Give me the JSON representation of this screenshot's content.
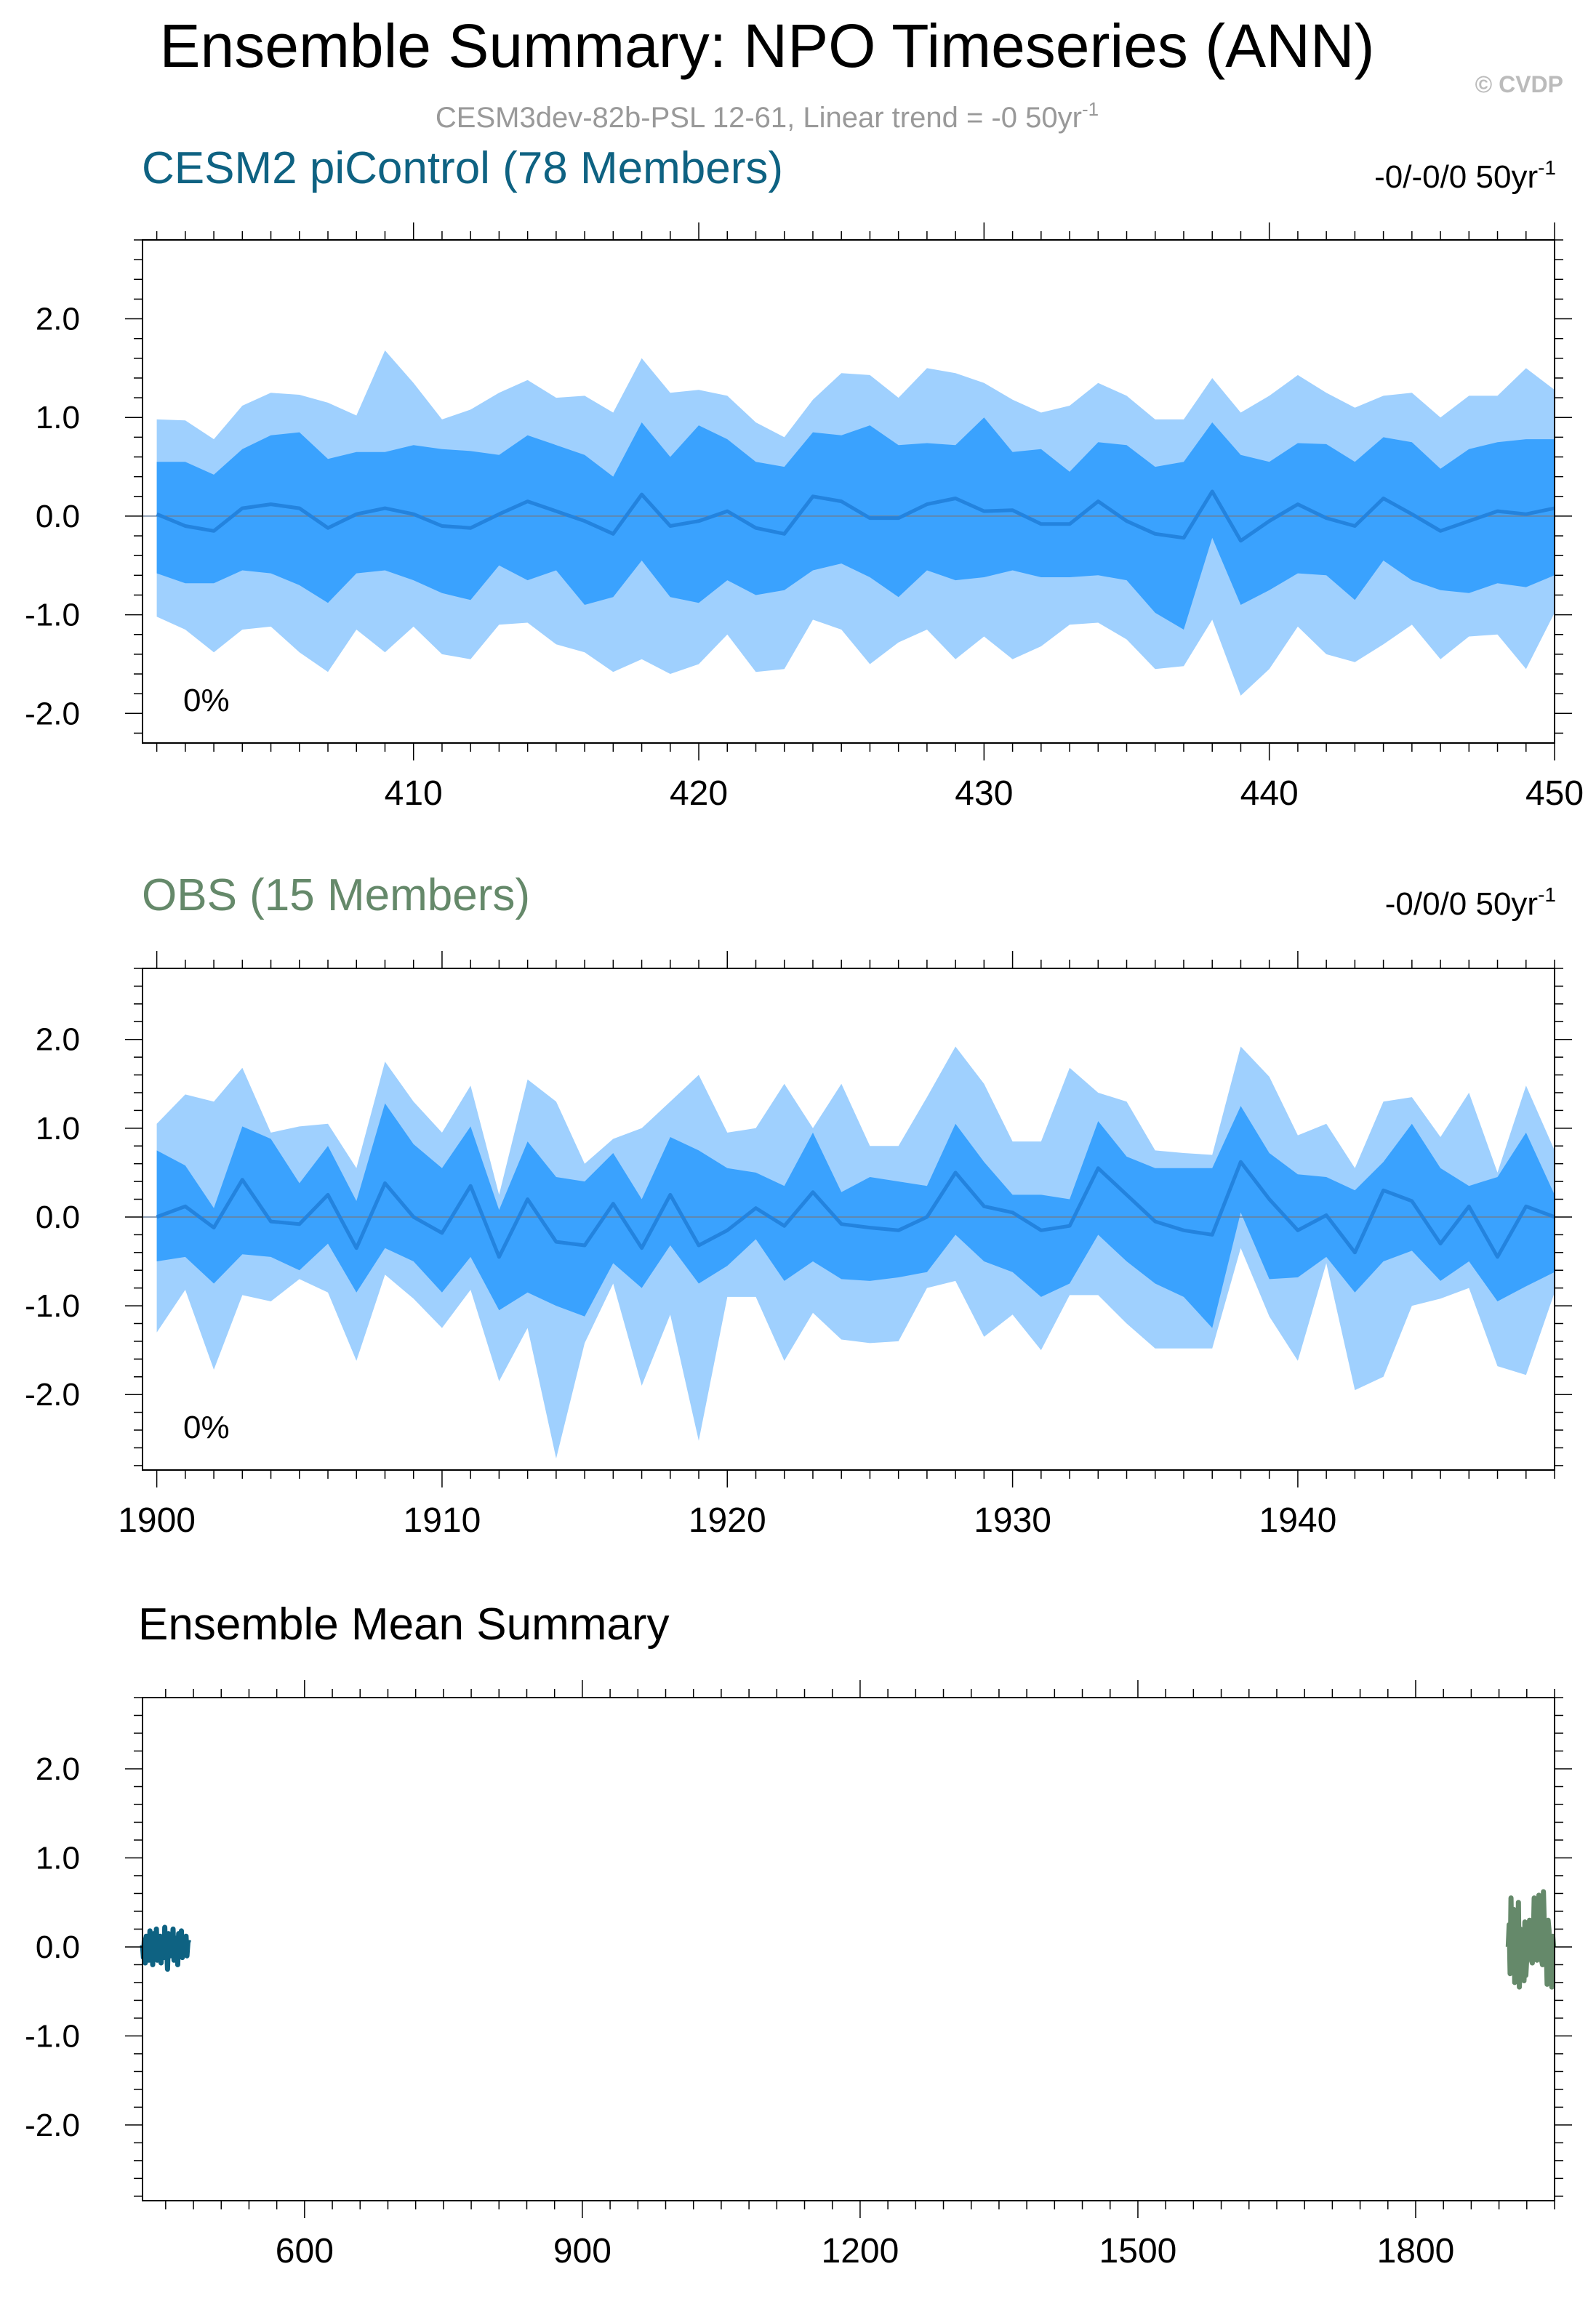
{
  "title": "Ensemble Summary: NPO Timeseries (ANN)",
  "copyright": "© CVDP",
  "subtitle_main": "CESM3dev-82b-PSL 12-61, Linear trend = -0 50yr",
  "subtitle_sup": "-1",
  "colors": {
    "outer_band": "#9fd0fe",
    "inner_band": "#3aa2fe",
    "mean_line": "#2383de",
    "cesm": "#0e6282",
    "obs": "#65896a",
    "subtitle": "#999999",
    "copyright": "#bbbbbb"
  },
  "chart_data": [
    {
      "type": "area",
      "title": "CESM2 piControl (78 Members)",
      "trend_main": "-0/-0/0 50yr",
      "trend_sup": "-1",
      "percent_label": "0%",
      "xlim": [
        400.5,
        450
      ],
      "ylim": [
        -2.3,
        2.8
      ],
      "xticks": [
        410,
        420,
        430,
        440,
        450
      ],
      "xtick_labels": [
        "410",
        "420",
        "430",
        "440",
        "450"
      ],
      "yticks": [
        -2,
        -1,
        0,
        1,
        2
      ],
      "ytick_labels": [
        "-2.0",
        "-1.0",
        "0.0",
        "1.0",
        "2.0"
      ],
      "x": [
        401,
        402,
        403,
        404,
        405,
        406,
        407,
        408,
        409,
        410,
        411,
        412,
        413,
        414,
        415,
        416,
        417,
        418,
        419,
        420,
        421,
        422,
        423,
        424,
        425,
        426,
        427,
        428,
        429,
        430,
        431,
        432,
        433,
        434,
        435,
        436,
        437,
        438,
        439,
        440,
        441,
        442,
        443,
        444,
        445,
        446,
        447,
        448,
        449,
        450
      ],
      "outer_upper": [
        0.98,
        0.97,
        0.78,
        1.12,
        1.25,
        1.23,
        1.15,
        1.02,
        1.68,
        1.35,
        0.98,
        1.08,
        1.25,
        1.38,
        1.2,
        1.22,
        1.05,
        1.6,
        1.25,
        1.28,
        1.22,
        0.95,
        0.8,
        1.18,
        1.45,
        1.43,
        1.2,
        1.5,
        1.45,
        1.35,
        1.18,
        1.05,
        1.12,
        1.35,
        1.22,
        0.98,
        0.98,
        1.4,
        1.05,
        1.22,
        1.43,
        1.25,
        1.1,
        1.22,
        1.25,
        1.0,
        1.22,
        1.22,
        1.5,
        1.28
      ],
      "inner_upper": [
        0.55,
        0.55,
        0.42,
        0.68,
        0.82,
        0.85,
        0.58,
        0.65,
        0.65,
        0.72,
        0.68,
        0.66,
        0.62,
        0.82,
        0.72,
        0.62,
        0.4,
        0.95,
        0.6,
        0.92,
        0.78,
        0.55,
        0.5,
        0.85,
        0.82,
        0.92,
        0.72,
        0.74,
        0.72,
        1.0,
        0.65,
        0.68,
        0.45,
        0.75,
        0.72,
        0.5,
        0.55,
        0.95,
        0.62,
        0.55,
        0.74,
        0.73,
        0.55,
        0.8,
        0.75,
        0.48,
        0.68,
        0.75,
        0.78,
        0.78
      ],
      "mean": [
        0.02,
        -0.1,
        -0.15,
        0.08,
        0.12,
        0.08,
        -0.12,
        0.02,
        0.08,
        0.02,
        -0.1,
        -0.12,
        0.02,
        0.15,
        0.05,
        -0.05,
        -0.18,
        0.22,
        -0.1,
        -0.05,
        0.05,
        -0.12,
        -0.18,
        0.2,
        0.15,
        -0.02,
        -0.02,
        0.12,
        0.18,
        0.05,
        0.06,
        -0.08,
        -0.08,
        0.15,
        -0.05,
        -0.18,
        -0.22,
        0.25,
        -0.25,
        -0.05,
        0.12,
        -0.02,
        -0.1,
        0.18,
        0.02,
        -0.15,
        -0.05,
        0.05,
        0.02,
        0.08
      ],
      "inner_lower": [
        -0.58,
        -0.68,
        -0.68,
        -0.55,
        -0.58,
        -0.7,
        -0.88,
        -0.58,
        -0.55,
        -0.65,
        -0.78,
        -0.85,
        -0.5,
        -0.65,
        -0.55,
        -0.9,
        -0.82,
        -0.45,
        -0.82,
        -0.88,
        -0.65,
        -0.8,
        -0.75,
        -0.55,
        -0.48,
        -0.62,
        -0.82,
        -0.55,
        -0.65,
        -0.62,
        -0.55,
        -0.62,
        -0.62,
        -0.6,
        -0.65,
        -0.98,
        -1.15,
        -0.22,
        -0.9,
        -0.75,
        -0.58,
        -0.6,
        -0.85,
        -0.45,
        -0.65,
        -0.75,
        -0.78,
        -0.68,
        -0.72,
        -0.6
      ],
      "outer_lower": [
        -1.02,
        -1.15,
        -1.38,
        -1.15,
        -1.12,
        -1.38,
        -1.58,
        -1.15,
        -1.38,
        -1.12,
        -1.4,
        -1.45,
        -1.1,
        -1.08,
        -1.3,
        -1.38,
        -1.58,
        -1.45,
        -1.6,
        -1.5,
        -1.2,
        -1.58,
        -1.55,
        -1.05,
        -1.15,
        -1.5,
        -1.28,
        -1.15,
        -1.45,
        -1.22,
        -1.45,
        -1.32,
        -1.1,
        -1.08,
        -1.25,
        -1.55,
        -1.52,
        -1.05,
        -1.82,
        -1.55,
        -1.12,
        -1.4,
        -1.48,
        -1.3,
        -1.1,
        -1.45,
        -1.22,
        -1.2,
        -1.55,
        -0.98
      ]
    },
    {
      "type": "area",
      "title": "OBS (15 Members)",
      "trend_main": "-0/0/0 50yr",
      "trend_sup": "-1",
      "percent_label": "0%",
      "xlim": [
        1899.5,
        1949
      ],
      "ylim": [
        -2.85,
        2.8
      ],
      "xticks": [
        1900,
        1910,
        1920,
        1930,
        1940
      ],
      "xtick_labels": [
        "1900",
        "1910",
        "1920",
        "1930",
        "1940"
      ],
      "yticks": [
        -2,
        -1,
        0,
        1,
        2
      ],
      "ytick_labels": [
        "-2.0",
        "-1.0",
        "0.0",
        "1.0",
        "2.0"
      ],
      "x": [
        1900,
        1901,
        1902,
        1903,
        1904,
        1905,
        1906,
        1907,
        1908,
        1909,
        1910,
        1911,
        1912,
        1913,
        1914,
        1915,
        1916,
        1917,
        1918,
        1919,
        1920,
        1921,
        1922,
        1923,
        1924,
        1925,
        1926,
        1927,
        1928,
        1929,
        1930,
        1931,
        1932,
        1933,
        1934,
        1935,
        1936,
        1937,
        1938,
        1939,
        1940,
        1941,
        1942,
        1943,
        1944,
        1945,
        1946,
        1947,
        1948,
        1949
      ],
      "outer_upper": [
        1.05,
        1.38,
        1.3,
        1.68,
        0.95,
        1.02,
        1.05,
        0.55,
        1.75,
        1.3,
        0.95,
        1.48,
        0.25,
        1.55,
        1.3,
        0.6,
        0.88,
        1.0,
        1.3,
        1.6,
        0.95,
        1.0,
        1.5,
        1.0,
        1.5,
        0.8,
        0.8,
        1.35,
        1.92,
        1.5,
        0.85,
        0.85,
        1.68,
        1.4,
        1.3,
        0.75,
        0.72,
        0.7,
        1.92,
        1.58,
        0.92,
        1.05,
        0.55,
        1.3,
        1.35,
        0.9,
        1.4,
        0.5,
        1.48,
        0.75
      ],
      "inner_upper": [
        0.75,
        0.58,
        0.1,
        1.02,
        0.88,
        0.38,
        0.8,
        0.18,
        1.28,
        0.82,
        0.55,
        1.02,
        0.08,
        0.85,
        0.45,
        0.4,
        0.72,
        0.2,
        0.9,
        0.75,
        0.55,
        0.5,
        0.35,
        0.95,
        0.28,
        0.45,
        0.4,
        0.35,
        1.05,
        0.62,
        0.25,
        0.25,
        0.2,
        1.08,
        0.68,
        0.55,
        0.55,
        0.55,
        1.25,
        0.72,
        0.48,
        0.45,
        0.3,
        0.62,
        1.05,
        0.55,
        0.35,
        0.45,
        0.95,
        0.25
      ],
      "mean": [
        0.0,
        0.12,
        -0.12,
        0.42,
        -0.05,
        -0.08,
        0.25,
        -0.35,
        0.38,
        0.0,
        -0.18,
        0.35,
        -0.45,
        0.2,
        -0.28,
        -0.32,
        0.15,
        -0.35,
        0.25,
        -0.32,
        -0.15,
        0.1,
        -0.1,
        0.28,
        -0.08,
        -0.12,
        -0.15,
        0.0,
        0.5,
        0.12,
        0.05,
        -0.15,
        -0.1,
        0.55,
        0.25,
        -0.05,
        -0.15,
        -0.2,
        0.62,
        0.2,
        -0.15,
        0.02,
        -0.4,
        0.3,
        0.18,
        -0.3,
        0.12,
        -0.45,
        0.12,
        0.0
      ],
      "inner_lower": [
        -0.5,
        -0.45,
        -0.75,
        -0.42,
        -0.45,
        -0.6,
        -0.3,
        -0.85,
        -0.35,
        -0.5,
        -0.85,
        -0.45,
        -1.05,
        -0.85,
        -1.0,
        -1.12,
        -0.52,
        -0.8,
        -0.32,
        -0.75,
        -0.55,
        -0.25,
        -0.72,
        -0.5,
        -0.7,
        -0.72,
        -0.68,
        -0.62,
        -0.2,
        -0.5,
        -0.62,
        -0.9,
        -0.75,
        -0.2,
        -0.5,
        -0.75,
        -0.9,
        -1.25,
        0.05,
        -0.7,
        -0.68,
        -0.45,
        -0.85,
        -0.5,
        -0.38,
        -0.72,
        -0.5,
        -0.95,
        -0.78,
        -0.62
      ],
      "outer_lower": [
        -1.3,
        -0.82,
        -1.72,
        -0.88,
        -0.95,
        -0.7,
        -0.85,
        -1.62,
        -0.65,
        -0.92,
        -1.25,
        -0.82,
        -1.85,
        -1.25,
        -2.72,
        -1.42,
        -0.75,
        -1.9,
        -1.1,
        -2.52,
        -0.9,
        -0.9,
        -1.62,
        -1.08,
        -1.38,
        -1.42,
        -1.4,
        -0.8,
        -0.72,
        -1.35,
        -1.1,
        -1.5,
        -0.88,
        -0.88,
        -1.2,
        -1.48,
        -1.48,
        -1.48,
        -0.35,
        -1.12,
        -1.62,
        -0.52,
        -1.95,
        -1.8,
        -1.0,
        -0.92,
        -0.8,
        -1.68,
        -1.78,
        -0.85
      ]
    },
    {
      "type": "line",
      "title": "Ensemble Mean Summary",
      "xlim": [
        425,
        1950
      ],
      "ylim": [
        -2.85,
        2.8
      ],
      "xticks": [
        600,
        900,
        1200,
        1500,
        1800
      ],
      "xtick_labels": [
        "600",
        "900",
        "1200",
        "1500",
        "1800"
      ],
      "yticks": [
        -2,
        -1,
        0,
        1,
        2
      ],
      "ytick_labels": [
        "-2.0",
        "-1.0",
        "0.0",
        "1.0",
        "2.0"
      ],
      "series": [
        {
          "name": "CESM2 piControl",
          "color": "#0e6282",
          "x": [
            425,
            426,
            427,
            428,
            429,
            430,
            431,
            432,
            433,
            434,
            435,
            436,
            437,
            438,
            439,
            440,
            441,
            442,
            443,
            444,
            445,
            446,
            447,
            448,
            449,
            450,
            451,
            452,
            453,
            454,
            455,
            456,
            457,
            458,
            459,
            460,
            461,
            462,
            463,
            464,
            465,
            466,
            467,
            468,
            469,
            470,
            471,
            472,
            473,
            474,
            475
          ],
          "y": [
            0.02,
            -0.12,
            0.08,
            -0.18,
            0.12,
            -0.05,
            0.1,
            -0.15,
            0.18,
            -0.08,
            0.05,
            -0.2,
            0.15,
            0.0,
            -0.1,
            0.2,
            -0.15,
            0.08,
            -0.05,
            0.12,
            -0.18,
            0.1,
            0.02,
            -0.12,
            0.22,
            -0.08,
            0.05,
            -0.25,
            0.15,
            0.0,
            -0.1,
            0.12,
            -0.05,
            0.2,
            -0.15,
            0.08,
            -0.02,
            0.1,
            -0.2,
            0.15,
            -0.08,
            0.05,
            0.18,
            -0.12,
            0.0,
            0.1,
            -0.05,
            0.12,
            -0.1,
            0.05,
            0.08
          ]
        },
        {
          "name": "OBS",
          "color": "#65896a",
          "x": [
            1900,
            1901,
            1902,
            1903,
            1904,
            1905,
            1906,
            1907,
            1908,
            1909,
            1910,
            1911,
            1912,
            1913,
            1914,
            1915,
            1916,
            1917,
            1918,
            1919,
            1920,
            1921,
            1922,
            1923,
            1924,
            1925,
            1926,
            1927,
            1928,
            1929,
            1930,
            1931,
            1932,
            1933,
            1934,
            1935,
            1936,
            1937,
            1938,
            1939,
            1940,
            1941,
            1942,
            1943,
            1944,
            1945,
            1946,
            1947,
            1948,
            1949
          ],
          "y": [
            0.0,
            0.25,
            -0.3,
            0.55,
            -0.15,
            0.1,
            0.42,
            -0.4,
            0.38,
            0.0,
            -0.25,
            0.5,
            -0.45,
            0.2,
            -0.3,
            -0.35,
            0.15,
            -0.38,
            0.28,
            -0.32,
            -0.12,
            0.1,
            -0.1,
            0.3,
            -0.08,
            -0.15,
            -0.18,
            0.05,
            0.55,
            0.12,
            0.05,
            -0.15,
            -0.1,
            0.58,
            0.28,
            -0.05,
            -0.15,
            -0.2,
            0.62,
            0.2,
            -0.15,
            0.02,
            -0.42,
            0.3,
            0.18,
            -0.32,
            0.12,
            -0.45,
            0.12,
            0.0
          ]
        }
      ]
    }
  ]
}
